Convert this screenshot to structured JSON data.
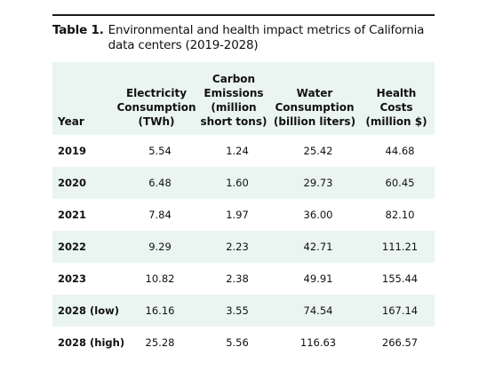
{
  "table": {
    "caption_label": "Table 1.",
    "caption_text": "Environmental and health impact metrics of California data centers (2019-2028)",
    "headers": [
      [
        "Year"
      ],
      [
        "Electricity",
        "Consumption",
        "(TWh)"
      ],
      [
        "Carbon",
        "Emissions",
        "(million",
        "short tons)"
      ],
      [
        "Water",
        "Consumption",
        "(billion liters)"
      ],
      [
        "Health",
        "Costs",
        "(million $)"
      ]
    ],
    "rows": [
      [
        "2019",
        "5.54",
        "1.24",
        "25.42",
        "44.68"
      ],
      [
        "2020",
        "6.48",
        "1.60",
        "29.73",
        "60.45"
      ],
      [
        "2021",
        "7.84",
        "1.97",
        "36.00",
        "82.10"
      ],
      [
        "2022",
        "9.29",
        "2.23",
        "42.71",
        "111.21"
      ],
      [
        "2023",
        "10.82",
        "2.38",
        "49.91",
        "155.44"
      ],
      [
        "2028 (low)",
        "16.16",
        "3.55",
        "74.54",
        "167.14"
      ],
      [
        "2028 (high)",
        "25.28",
        "5.56",
        "116.63",
        "266.57"
      ]
    ]
  },
  "colors": {
    "shade": "#eaf5f1",
    "rule": "#1a1a1a",
    "text": "#111111"
  }
}
